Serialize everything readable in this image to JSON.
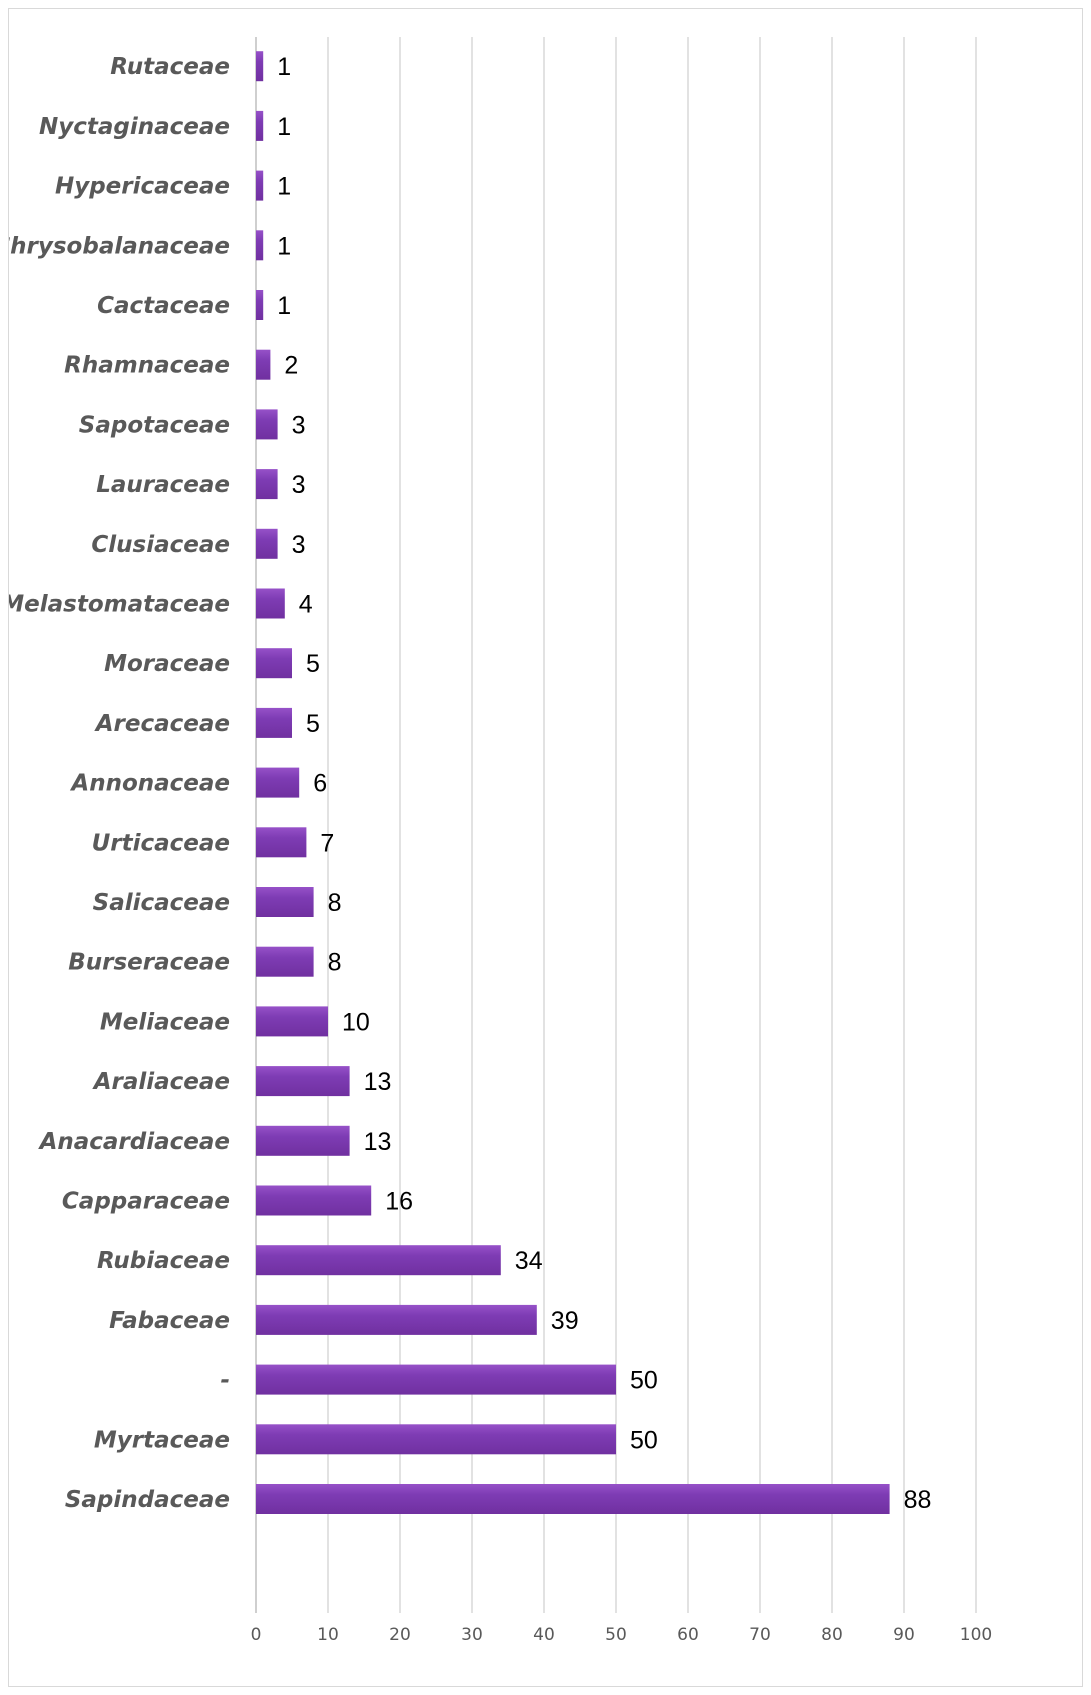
{
  "chart_data": {
    "type": "bar",
    "orientation": "horizontal",
    "categories": [
      "Sapindaceae",
      "Myrtaceae",
      "-",
      "Fabaceae",
      "Rubiaceae",
      "Capparaceae",
      "Anacardiaceae",
      "Araliaceae",
      "Meliaceae",
      "Burseraceae",
      "Salicaceae",
      "Urticaceae",
      "Annonaceae",
      "Arecaceae",
      "Moraceae",
      "Melastomataceae",
      "Clusiaceae",
      "Lauraceae",
      "Sapotaceae",
      "Rhamnaceae",
      "Cactaceae",
      "Chrysobalanaceae",
      "Hypericaceae",
      "Nyctaginaceae",
      "Rutaceae"
    ],
    "values": [
      88,
      50,
      50,
      39,
      34,
      16,
      13,
      13,
      10,
      8,
      8,
      7,
      6,
      5,
      5,
      4,
      3,
      3,
      3,
      2,
      1,
      1,
      1,
      1,
      1
    ],
    "xlim": [
      0,
      100
    ],
    "x_ticks": [
      0,
      10,
      20,
      30,
      40,
      50,
      60,
      70,
      80,
      90,
      100
    ],
    "grid": "vertical",
    "legend": "none",
    "title": "",
    "xlabel": "",
    "ylabel": "",
    "bar_color": "#7030a0",
    "bar_color_light": "#9651c8",
    "data_labels": true
  }
}
